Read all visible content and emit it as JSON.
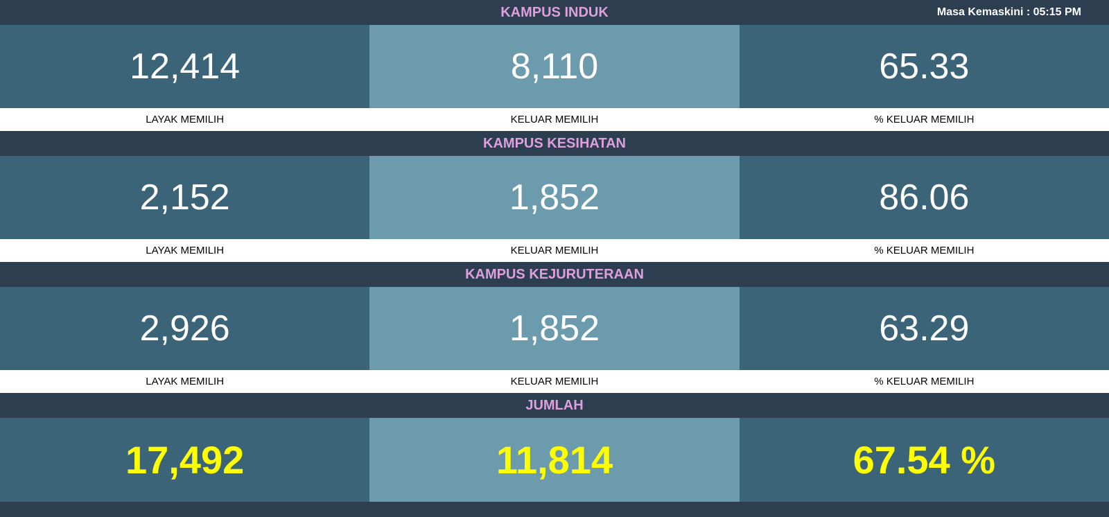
{
  "timestamp": "Masa Kemaskini : 05:15 PM",
  "labels": {
    "eligible": "LAYAK MEMILIH",
    "voted": "KELUAR MEMILIH",
    "percent": "% KELUAR MEMILIH"
  },
  "sections": [
    {
      "title": "KAMPUS INDUK",
      "eligible": "12,414",
      "voted": "8,110",
      "percent": "65.33"
    },
    {
      "title": "KAMPUS KESIHATAN",
      "eligible": "2,152",
      "voted": "1,852",
      "percent": "86.06"
    },
    {
      "title": "KAMPUS KEJURUTERAAN",
      "eligible": "2,926",
      "voted": "1,852",
      "percent": "63.29"
    }
  ],
  "totals": {
    "title": "JUMLAH",
    "eligible": "17,492",
    "voted": "11,814",
    "percent": "67.54 %"
  },
  "colors": {
    "header_bg": "#2c3e50",
    "header_title": "#dda0dd",
    "cell_dark": "#3c6478",
    "cell_light": "#6c9bad",
    "value_text": "#ffffff",
    "totals_text": "#ffff00",
    "label_bg": "#ffffff",
    "label_text": "#000000"
  }
}
